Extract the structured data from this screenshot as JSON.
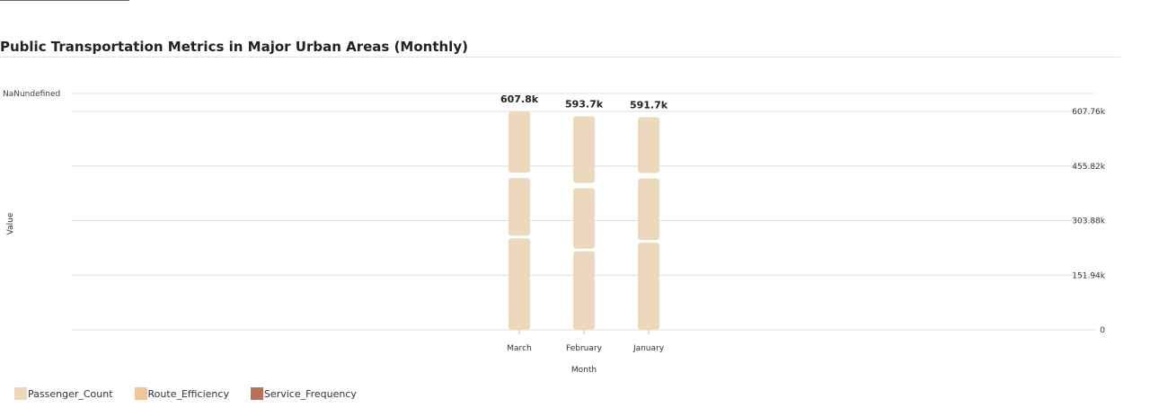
{
  "title": "Public Transportation Metrics in Major Urban Areas (Monthly)",
  "colors": {
    "Passenger_Count": "#ecd9bd",
    "Route_Efficiency": "#f2c49b",
    "Service_Frequency": "#b57257"
  },
  "chart_data": {
    "type": "bar",
    "stacked": true,
    "categories": [
      "March",
      "February",
      "January"
    ],
    "series": [
      {
        "name": "Passenger_Count",
        "values": [
          607760,
          593700,
          591700
        ]
      },
      {
        "name": "Route_Efficiency",
        "values": [
          0,
          0,
          0
        ]
      },
      {
        "name": "Service_Frequency",
        "values": [
          0,
          0,
          0
        ]
      }
    ],
    "segments_visual": [
      [
        262000,
        168000,
        177760
      ],
      [
        226000,
        175000,
        192700
      ],
      [
        250000,
        179000,
        162700
      ]
    ],
    "total_labels": [
      "607.8k",
      "593.7k",
      "591.7k"
    ],
    "xlabel": "Month",
    "ylabel": "Value",
    "top_tick_label": "NaNundefined",
    "right_ticks": [
      "0",
      "151.94k",
      "303.88k",
      "455.82k",
      "607.76k"
    ],
    "right_tick_values": [
      0,
      151940,
      303880,
      455820,
      607760
    ],
    "ylim": [
      0,
      607760
    ],
    "grid": true,
    "legend_position": "bottom-left"
  }
}
